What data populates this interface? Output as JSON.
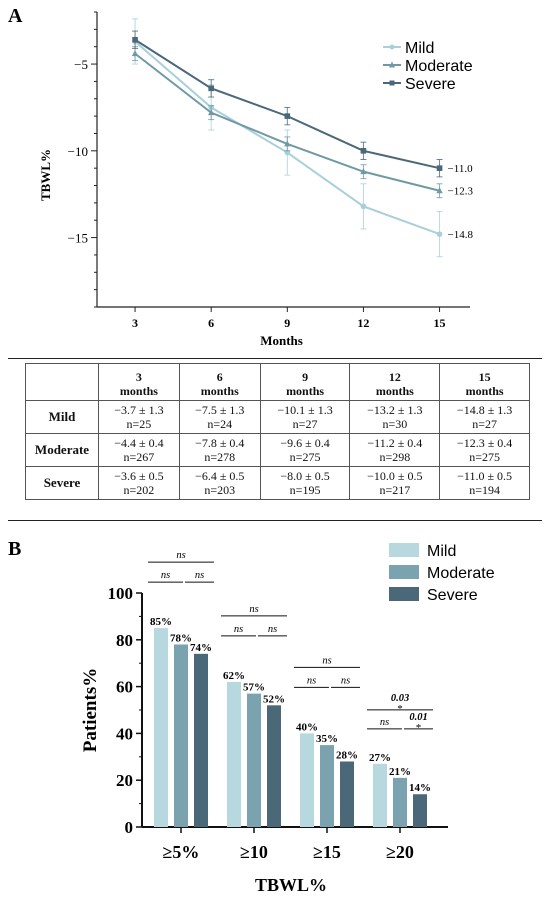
{
  "chart_data": [
    {
      "panel_label": "A",
      "type": "line",
      "xlabel": "Months",
      "ylabel": "TBWL%",
      "x": [
        3,
        6,
        9,
        12,
        15
      ],
      "ylim": [
        -19,
        -2
      ],
      "yticks": [
        -5,
        -10,
        -15
      ],
      "legend_position": "top-right",
      "series": [
        {
          "name": "Mild",
          "color": "#a9cfdb",
          "marker": "circle",
          "values": [
            -3.7,
            -7.5,
            -10.1,
            -13.2,
            -14.8
          ],
          "errors": [
            1.3,
            1.3,
            1.3,
            1.3,
            1.3
          ],
          "end_label": "−14.8"
        },
        {
          "name": "Moderate",
          "color": "#6f9aa5",
          "marker": "triangle",
          "values": [
            -4.4,
            -7.8,
            -9.6,
            -11.2,
            -12.3
          ],
          "errors": [
            0.4,
            0.4,
            0.4,
            0.4,
            0.4
          ],
          "end_label": "−12.3"
        },
        {
          "name": "Severe",
          "color": "#4a6878",
          "marker": "square",
          "values": [
            -3.6,
            -6.4,
            -8.0,
            -10.0,
            -11.0
          ],
          "errors": [
            0.5,
            0.5,
            0.5,
            0.5,
            0.5
          ],
          "end_label": "−11.0"
        }
      ]
    },
    {
      "panel_label": "B",
      "type": "bar",
      "xlabel": "TBWL%",
      "ylabel": "Patients%",
      "categories": [
        "≥5%",
        "≥10",
        "≥15",
        "≥20"
      ],
      "ylim": [
        0,
        100
      ],
      "yticks": [
        0,
        20,
        40,
        60,
        80,
        100
      ],
      "legend_position": "top-right",
      "series": [
        {
          "name": "Mild",
          "color": "#b8d8e0",
          "values": [
            85,
            62,
            40,
            27
          ],
          "labels": [
            "85%",
            "62%",
            "40%",
            "27%"
          ]
        },
        {
          "name": "Moderate",
          "color": "#7aa3af",
          "values": [
            78,
            57,
            35,
            21
          ],
          "labels": [
            "78%",
            "57%",
            "35%",
            "21%"
          ]
        },
        {
          "name": "Severe",
          "color": "#4a6878",
          "values": [
            74,
            52,
            28,
            14
          ],
          "labels": [
            "74%",
            "52%",
            "28%",
            "14%"
          ]
        }
      ],
      "comparisons": [
        {
          "category": 0,
          "pair": [
            0,
            1
          ],
          "label": "ns",
          "star": ""
        },
        {
          "category": 0,
          "pair": [
            1,
            2
          ],
          "label": "ns",
          "star": ""
        },
        {
          "category": 0,
          "pair": [
            0,
            2
          ],
          "label": "ns",
          "star": ""
        },
        {
          "category": 1,
          "pair": [
            0,
            1
          ],
          "label": "ns",
          "star": ""
        },
        {
          "category": 1,
          "pair": [
            1,
            2
          ],
          "label": "ns",
          "star": ""
        },
        {
          "category": 1,
          "pair": [
            0,
            2
          ],
          "label": "ns",
          "star": ""
        },
        {
          "category": 2,
          "pair": [
            0,
            1
          ],
          "label": "ns",
          "star": ""
        },
        {
          "category": 2,
          "pair": [
            1,
            2
          ],
          "label": "ns",
          "star": ""
        },
        {
          "category": 2,
          "pair": [
            0,
            2
          ],
          "label": "ns",
          "star": ""
        },
        {
          "category": 3,
          "pair": [
            0,
            1
          ],
          "label": "ns",
          "star": ""
        },
        {
          "category": 3,
          "pair": [
            1,
            2
          ],
          "label": "0.01",
          "star": "*"
        },
        {
          "category": 3,
          "pair": [
            0,
            2
          ],
          "label": "0.03",
          "star": "*"
        }
      ]
    }
  ],
  "table": {
    "headers": [
      {
        "num": "3",
        "unit": "months"
      },
      {
        "num": "6",
        "unit": "months"
      },
      {
        "num": "9",
        "unit": "months"
      },
      {
        "num": "12",
        "unit": "months"
      },
      {
        "num": "15",
        "unit": "months"
      }
    ],
    "rows": [
      {
        "label": "Mild",
        "cells": [
          {
            "mean": "−3.7 ± 1.3",
            "n": "n=25"
          },
          {
            "mean": "−7.5 ± 1.3",
            "n": "n=24"
          },
          {
            "mean": "−10.1 ± 1.3",
            "n": "n=27"
          },
          {
            "mean": "−13.2 ± 1.3",
            "n": "n=30"
          },
          {
            "mean": "−14.8 ± 1.3",
            "n": "n=27"
          }
        ]
      },
      {
        "label": "Moderate",
        "cells": [
          {
            "mean": "−4.4 ± 0.4",
            "n": "n=267"
          },
          {
            "mean": "−7.8 ± 0.4",
            "n": "n=278"
          },
          {
            "mean": "−9.6 ± 0.4",
            "n": "n=275"
          },
          {
            "mean": "−11.2 ± 0.4",
            "n": "n=298"
          },
          {
            "mean": "−12.3 ± 0.4",
            "n": "n=275"
          }
        ]
      },
      {
        "label": "Severe",
        "cells": [
          {
            "mean": "−3.6 ± 0.5",
            "n": "n=202"
          },
          {
            "mean": "−6.4 ± 0.5",
            "n": "n=203"
          },
          {
            "mean": "−8.0 ± 0.5",
            "n": "n=195"
          },
          {
            "mean": "−10.0 ± 0.5",
            "n": "n=217"
          },
          {
            "mean": "−11.0 ± 0.5",
            "n": "n=194"
          }
        ]
      }
    ]
  }
}
